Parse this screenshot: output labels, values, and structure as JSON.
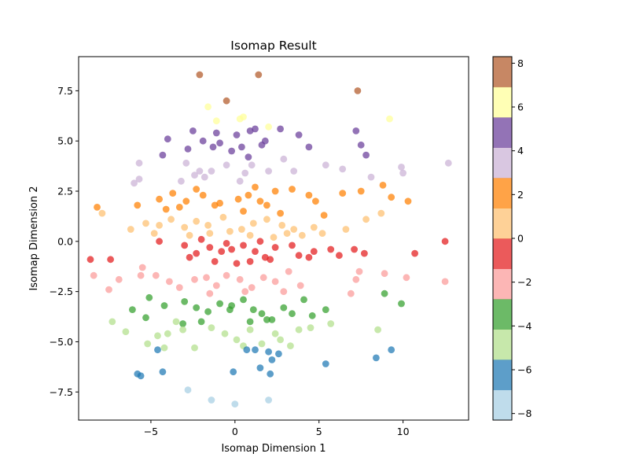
{
  "chart_data": {
    "type": "scatter",
    "title": "Isomap Result",
    "xlabel": "Isomap Dimension 1",
    "ylabel": "Isomap Dimension 2",
    "xlim": [
      -9.3,
      13.9
    ],
    "ylim": [
      -8.9,
      9.2
    ],
    "xticks": [
      -5,
      0,
      5,
      10
    ],
    "yticks": [
      -7.5,
      -5.0,
      -2.5,
      0.0,
      2.5,
      5.0,
      7.5
    ],
    "xtick_labels": [
      "−5",
      "0",
      "5",
      "10"
    ],
    "ytick_labels": [
      "−7.5",
      "−5.0",
      "−2.5",
      "0.0",
      "2.5",
      "5.0",
      "7.5"
    ],
    "grid": false,
    "colormap": "Paired",
    "colorbar": {
      "min": -8.3,
      "max": 8.3,
      "ticks": [
        -8,
        -6,
        -4,
        -2,
        0,
        2,
        4,
        6,
        8
      ],
      "tick_labels": [
        "−8",
        "−6",
        "−4",
        "−2",
        "0",
        "2",
        "4",
        "6",
        "8"
      ],
      "colors": [
        "#a6cee3",
        "#1f78b4",
        "#b2df8a",
        "#33a02c",
        "#fb9a99",
        "#e31a1c",
        "#fdbf6f",
        "#ff7f00",
        "#cab2d6",
        "#6a3d9a",
        "#ffff99",
        "#b15928"
      ]
    },
    "points": [
      [
        -2.1,
        8.3
      ],
      [
        1.4,
        8.3
      ],
      [
        7.3,
        7.5
      ],
      [
        -0.5,
        7.0
      ],
      [
        -1.6,
        6.7
      ],
      [
        -1.1,
        6.0
      ],
      [
        0.3,
        6.1
      ],
      [
        0.5,
        6.2
      ],
      [
        2.0,
        5.7
      ],
      [
        9.2,
        6.1
      ],
      [
        -4.0,
        5.1
      ],
      [
        -2.5,
        5.5
      ],
      [
        -1.9,
        5.0
      ],
      [
        -1.3,
        4.7
      ],
      [
        -0.9,
        4.9
      ],
      [
        0.1,
        5.3
      ],
      [
        0.4,
        4.7
      ],
      [
        0.9,
        5.5
      ],
      [
        1.2,
        5.6
      ],
      [
        1.8,
        5.0
      ],
      [
        2.7,
        5.6
      ],
      [
        3.8,
        5.3
      ],
      [
        4.4,
        4.7
      ],
      [
        7.2,
        5.5
      ],
      [
        7.5,
        4.8
      ],
      [
        7.8,
        4.3
      ],
      [
        -1.1,
        5.4
      ],
      [
        0.8,
        4.2
      ],
      [
        -4.3,
        4.3
      ],
      [
        -2.8,
        4.6
      ],
      [
        1.6,
        4.8
      ],
      [
        -0.2,
        4.5
      ],
      [
        -5.7,
        3.9
      ],
      [
        -5.7,
        3.1
      ],
      [
        -6.0,
        2.9
      ],
      [
        -2.9,
        3.9
      ],
      [
        -2.1,
        3.5
      ],
      [
        -1.4,
        3.5
      ],
      [
        -0.5,
        3.8
      ],
      [
        0.6,
        3.4
      ],
      [
        1.0,
        3.8
      ],
      [
        2.0,
        3.5
      ],
      [
        2.9,
        4.1
      ],
      [
        3.5,
        3.5
      ],
      [
        5.4,
        3.8
      ],
      [
        6.4,
        3.6
      ],
      [
        8.1,
        3.2
      ],
      [
        9.9,
        3.7
      ],
      [
        10.0,
        3.4
      ],
      [
        12.7,
        3.9
      ],
      [
        -3.2,
        3.0
      ],
      [
        -1.8,
        3.2
      ],
      [
        0.3,
        3.0
      ],
      [
        -2.4,
        3.3
      ],
      [
        -8.2,
        1.7
      ],
      [
        -5.8,
        1.8
      ],
      [
        -4.5,
        2.1
      ],
      [
        -3.7,
        2.4
      ],
      [
        -2.9,
        2.0
      ],
      [
        -1.9,
        2.3
      ],
      [
        -0.9,
        1.9
      ],
      [
        0.2,
        2.1
      ],
      [
        0.8,
        2.3
      ],
      [
        1.5,
        2.0
      ],
      [
        2.4,
        2.5
      ],
      [
        3.4,
        2.6
      ],
      [
        4.4,
        2.3
      ],
      [
        4.8,
        2.0
      ],
      [
        6.4,
        2.4
      ],
      [
        7.5,
        2.5
      ],
      [
        8.8,
        2.8
      ],
      [
        9.3,
        2.2
      ],
      [
        10.3,
        2.0
      ],
      [
        -3.3,
        1.7
      ],
      [
        -1.2,
        1.8
      ],
      [
        0.5,
        1.5
      ],
      [
        1.9,
        1.8
      ],
      [
        5.3,
        1.3
      ],
      [
        -4.1,
        1.6
      ],
      [
        2.7,
        1.4
      ],
      [
        -2.3,
        2.6
      ],
      [
        1.2,
        2.7
      ],
      [
        -7.9,
        1.4
      ],
      [
        -6.2,
        0.6
      ],
      [
        -5.3,
        0.9
      ],
      [
        -4.5,
        0.8
      ],
      [
        -3.8,
        1.1
      ],
      [
        -3.0,
        0.7
      ],
      [
        -2.3,
        1.0
      ],
      [
        -1.6,
        0.8
      ],
      [
        -0.7,
        1.2
      ],
      [
        0.4,
        0.6
      ],
      [
        1.1,
        0.9
      ],
      [
        1.9,
        1.1
      ],
      [
        2.8,
        0.8
      ],
      [
        3.5,
        0.6
      ],
      [
        4.7,
        0.7
      ],
      [
        5.2,
        0.4
      ],
      [
        6.6,
        0.6
      ],
      [
        7.8,
        1.1
      ],
      [
        8.7,
        1.4
      ],
      [
        -1.5,
        0.4
      ],
      [
        -0.3,
        0.5
      ],
      [
        0.9,
        0.3
      ],
      [
        2.3,
        0.2
      ],
      [
        3.1,
        0.4
      ],
      [
        -2.7,
        0.3
      ],
      [
        -4.8,
        0.4
      ],
      [
        4.0,
        0.3
      ],
      [
        -8.6,
        -0.9
      ],
      [
        -7.4,
        -0.9
      ],
      [
        -4.5,
        0.0
      ],
      [
        -3.0,
        -0.2
      ],
      [
        -2.3,
        -0.6
      ],
      [
        -1.5,
        -0.3
      ],
      [
        -0.8,
        -0.5
      ],
      [
        -0.2,
        -0.4
      ],
      [
        0.5,
        -0.2
      ],
      [
        1.2,
        -0.5
      ],
      [
        1.8,
        -0.8
      ],
      [
        2.4,
        -0.3
      ],
      [
        3.4,
        -0.2
      ],
      [
        3.8,
        -0.7
      ],
      [
        4.7,
        -0.5
      ],
      [
        5.7,
        -0.4
      ],
      [
        6.2,
        -0.7
      ],
      [
        7.1,
        -0.4
      ],
      [
        7.7,
        -0.6
      ],
      [
        10.7,
        -0.6
      ],
      [
        12.5,
        0.0
      ],
      [
        -1.2,
        -1.0
      ],
      [
        0.1,
        -1.1
      ],
      [
        0.9,
        -1.0
      ],
      [
        2.1,
        -0.9
      ],
      [
        -0.5,
        -0.1
      ],
      [
        1.5,
        0.0
      ],
      [
        -2.0,
        0.1
      ],
      [
        4.4,
        -0.8
      ],
      [
        -2.7,
        -0.8
      ],
      [
        -8.4,
        -1.7
      ],
      [
        -7.5,
        -2.4
      ],
      [
        -6.9,
        -1.9
      ],
      [
        -5.6,
        -1.7
      ],
      [
        -4.7,
        -1.7
      ],
      [
        -3.9,
        -2.0
      ],
      [
        -3.3,
        -2.3
      ],
      [
        -2.4,
        -1.9
      ],
      [
        -1.7,
        -1.8
      ],
      [
        -1.1,
        -2.2
      ],
      [
        -0.5,
        -1.7
      ],
      [
        0.3,
        -1.9
      ],
      [
        1.0,
        -2.3
      ],
      [
        1.7,
        -1.8
      ],
      [
        2.4,
        -2.0
      ],
      [
        3.2,
        -1.5
      ],
      [
        3.9,
        -2.2
      ],
      [
        7.2,
        -1.9
      ],
      [
        7.4,
        -1.5
      ],
      [
        8.9,
        -1.6
      ],
      [
        10.2,
        -1.8
      ],
      [
        12.5,
        -2.0
      ],
      [
        -5.5,
        -1.3
      ],
      [
        -1.5,
        -2.6
      ],
      [
        0.6,
        -2.5
      ],
      [
        2.9,
        -2.5
      ],
      [
        6.9,
        -2.6
      ],
      [
        -6.1,
        -3.4
      ],
      [
        -5.1,
        -2.8
      ],
      [
        -4.2,
        -3.2
      ],
      [
        -3.0,
        -3.0
      ],
      [
        -2.3,
        -3.3
      ],
      [
        -1.6,
        -3.5
      ],
      [
        -0.9,
        -3.1
      ],
      [
        -0.2,
        -3.2
      ],
      [
        0.5,
        -2.9
      ],
      [
        1.1,
        -3.4
      ],
      [
        1.6,
        -3.6
      ],
      [
        2.2,
        -3.9
      ],
      [
        2.9,
        -3.3
      ],
      [
        3.4,
        -3.6
      ],
      [
        4.1,
        -2.9
      ],
      [
        4.6,
        -3.7
      ],
      [
        5.4,
        -3.4
      ],
      [
        8.9,
        -2.6
      ],
      [
        9.9,
        -3.1
      ],
      [
        -5.3,
        -3.8
      ],
      [
        -3.1,
        -4.1
      ],
      [
        -0.3,
        -3.4
      ],
      [
        1.9,
        -3.9
      ],
      [
        -2.0,
        -4.0
      ],
      [
        0.9,
        -4.0
      ],
      [
        -7.3,
        -4.0
      ],
      [
        -6.5,
        -4.5
      ],
      [
        -5.2,
        -5.1
      ],
      [
        -4.6,
        -4.7
      ],
      [
        -4.0,
        -4.6
      ],
      [
        -3.1,
        -4.4
      ],
      [
        -2.4,
        -5.3
      ],
      [
        -1.4,
        -4.3
      ],
      [
        -0.6,
        -4.6
      ],
      [
        0.1,
        -4.9
      ],
      [
        0.9,
        -4.4
      ],
      [
        1.6,
        -5.1
      ],
      [
        2.4,
        -4.6
      ],
      [
        3.3,
        -5.2
      ],
      [
        3.8,
        -4.4
      ],
      [
        4.5,
        -4.3
      ],
      [
        5.7,
        -4.1
      ],
      [
        8.5,
        -4.4
      ],
      [
        -4.2,
        -5.3
      ],
      [
        2.7,
        -4.9
      ],
      [
        -3.5,
        -4.0
      ],
      [
        0.5,
        -5.2
      ],
      [
        -5.8,
        -6.6
      ],
      [
        -5.6,
        -6.7
      ],
      [
        -4.6,
        -5.4
      ],
      [
        -4.3,
        -6.5
      ],
      [
        -0.1,
        -6.5
      ],
      [
        0.7,
        -5.4
      ],
      [
        1.5,
        -6.3
      ],
      [
        2.0,
        -5.5
      ],
      [
        2.2,
        -5.9
      ],
      [
        2.6,
        -5.6
      ],
      [
        2.1,
        -6.6
      ],
      [
        5.4,
        -6.1
      ],
      [
        8.4,
        -5.8
      ],
      [
        9.3,
        -5.4
      ],
      [
        1.2,
        -5.4
      ],
      [
        -2.8,
        -7.4
      ],
      [
        -1.4,
        -7.9
      ],
      [
        0.0,
        -8.1
      ],
      [
        2.0,
        -7.9
      ]
    ],
    "values": [
      7.8,
      7.8,
      7.8,
      7.8,
      5.8,
      5.8,
      5.8,
      5.8,
      5.8,
      5.8,
      4.5,
      4.5,
      4.5,
      4.5,
      4.5,
      4.5,
      4.5,
      4.5,
      4.5,
      4.5,
      4.5,
      4.5,
      4.5,
      4.5,
      4.5,
      4.5,
      4.5,
      4.5,
      4.5,
      4.5,
      4.5,
      4.5,
      3.2,
      3.2,
      3.2,
      3.2,
      3.2,
      3.2,
      3.2,
      3.2,
      3.2,
      3.2,
      3.2,
      3.2,
      3.2,
      3.2,
      3.2,
      3.2,
      3.2,
      3.2,
      3.2,
      3.2,
      3.2,
      3.2,
      1.8,
      1.8,
      1.8,
      1.8,
      1.8,
      1.8,
      1.8,
      1.8,
      1.8,
      1.8,
      1.8,
      1.8,
      1.8,
      1.8,
      1.8,
      1.8,
      1.8,
      1.8,
      1.8,
      1.8,
      1.8,
      1.8,
      1.8,
      1.8,
      1.8,
      1.8,
      1.8,
      1.8,
      0.5,
      0.5,
      0.5,
      0.5,
      0.5,
      0.5,
      0.5,
      0.5,
      0.5,
      0.5,
      0.5,
      0.5,
      0.5,
      0.5,
      0.5,
      0.5,
      0.5,
      0.5,
      0.5,
      0.5,
      0.5,
      0.5,
      0.5,
      0.5,
      0.5,
      0.5,
      0.5,
      -0.8,
      -0.8,
      -0.8,
      -0.8,
      -0.8,
      -0.8,
      -0.8,
      -0.8,
      -0.8,
      -0.8,
      -0.8,
      -0.8,
      -0.8,
      -0.8,
      -0.8,
      -0.8,
      -0.8,
      -0.8,
      -0.8,
      -0.8,
      -0.8,
      -0.8,
      -0.8,
      -0.8,
      -0.8,
      -0.8,
      -0.8,
      -0.8,
      -0.8,
      -0.8,
      -2.2,
      -2.2,
      -2.2,
      -2.2,
      -2.2,
      -2.2,
      -2.2,
      -2.2,
      -2.2,
      -2.2,
      -2.2,
      -2.2,
      -2.2,
      -2.2,
      -2.2,
      -2.2,
      -2.2,
      -2.2,
      -2.2,
      -2.2,
      -2.2,
      -2.2,
      -2.2,
      -2.2,
      -2.2,
      -2.2,
      -2.2,
      -3.5,
      -3.5,
      -3.5,
      -3.5,
      -3.5,
      -3.5,
      -3.5,
      -3.5,
      -3.5,
      -3.5,
      -3.5,
      -3.5,
      -3.5,
      -3.5,
      -3.5,
      -3.5,
      -3.5,
      -3.5,
      -3.5,
      -3.5,
      -3.5,
      -3.5,
      -3.5,
      -3.5,
      -3.5,
      -4.8,
      -4.8,
      -4.8,
      -4.8,
      -4.8,
      -4.8,
      -4.8,
      -4.8,
      -4.8,
      -4.8,
      -4.8,
      -4.8,
      -4.8,
      -4.8,
      -4.8,
      -4.8,
      -4.8,
      -4.8,
      -4.8,
      -4.8,
      -4.8,
      -4.8,
      -6.2,
      -6.2,
      -6.2,
      -6.2,
      -6.2,
      -6.2,
      -6.2,
      -6.2,
      -6.2,
      -6.2,
      -6.2,
      -6.2,
      -6.2,
      -6.2,
      -6.2,
      -7.7,
      -7.7,
      -7.7,
      -7.7
    ]
  }
}
